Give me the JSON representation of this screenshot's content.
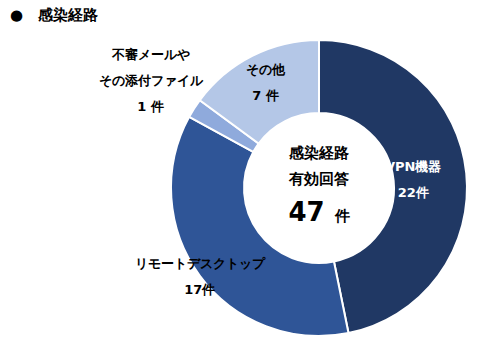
{
  "chart_data": {
    "type": "donut",
    "title": "●　感染経路",
    "categories": [
      "VPN機器",
      "リモートデスクトップ",
      "不審メールや\nその添付ファイル",
      "その他"
    ],
    "values": [
      22,
      17,
      1,
      7
    ],
    "value_labels": [
      "22件",
      "17件",
      "1 件",
      "7 件"
    ],
    "colors": [
      "#203864",
      "#2f5597",
      "#8faadc",
      "#b4c7e7"
    ],
    "data_labels": true,
    "center_text": [
      "感染経路",
      "有効回答"
    ],
    "total": 47,
    "total_unit": "件"
  }
}
